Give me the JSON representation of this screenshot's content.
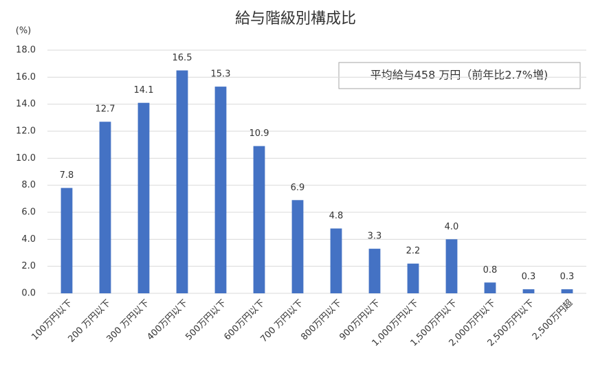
{
  "chart_data": {
    "type": "bar",
    "title": "給与階級別構成比",
    "y_label": "(%)",
    "annotation": "平均給与458 万円（前年比2.7%増)",
    "categories": [
      "100万円以下",
      "200 万円以下",
      "300 万円以下",
      "400万円以下",
      "500万円以下",
      "600万円以下",
      "700 万円以下",
      "800万円以下",
      "900万円以下",
      "1,000万円以下",
      "1,500万円以下",
      "2,000万円以下",
      "2,500万円以下",
      "2,500万円超"
    ],
    "values": [
      7.8,
      12.7,
      14.1,
      16.5,
      15.3,
      10.9,
      6.9,
      4.8,
      3.3,
      2.2,
      4.0,
      0.8,
      0.3,
      0.3
    ],
    "value_labels": [
      "7.8",
      "12.7",
      "14.1",
      "16.5",
      "15.3",
      "10.9",
      "6.9",
      "4.8",
      "3.3",
      "2.2",
      "4.0",
      "0.8",
      "0.3",
      "0.3"
    ],
    "color": "#4472c4",
    "ylim": [
      0,
      18
    ],
    "yticks": [
      {
        "value": 0,
        "label": "0.0"
      },
      {
        "value": 2,
        "label": "2.0"
      },
      {
        "value": 4,
        "label": "4.0"
      },
      {
        "value": 6,
        "label": "6.0"
      },
      {
        "value": 8,
        "label": "8.0"
      },
      {
        "value": 10,
        "label": "10.0"
      },
      {
        "value": 12,
        "label": "12.0"
      },
      {
        "value": 14,
        "label": "14.0"
      },
      {
        "value": 16,
        "label": "16.0"
      },
      {
        "value": 18,
        "label": "18.0"
      }
    ],
    "grid": true
  }
}
